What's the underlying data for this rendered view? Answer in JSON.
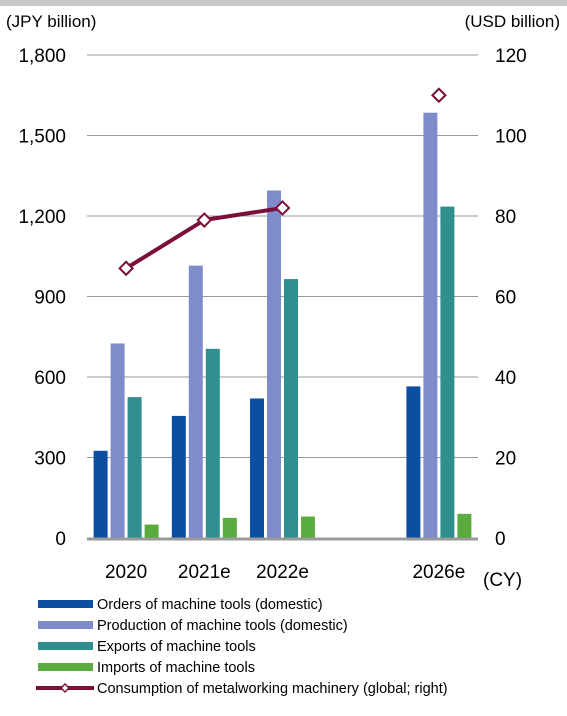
{
  "chart_data": {
    "type": "bar",
    "title": "",
    "categories": [
      "2020",
      "2021e",
      "2022e",
      "2026e"
    ],
    "xlabel": "(CY)",
    "ylabel_left": "(JPY billion)",
    "ylabel_right": "(USD billion)",
    "ylim_left": [
      0,
      1800
    ],
    "ylim_right": [
      0,
      120
    ],
    "yticks_left": [
      "0",
      "300",
      "600",
      "900",
      "1,200",
      "1,500",
      "1,800"
    ],
    "yticks_right": [
      "0",
      "20",
      "40",
      "60",
      "80",
      "100",
      "120"
    ],
    "grid": true,
    "legend_position": "bottom",
    "series": [
      {
        "name": "Orders of machine tools (domestic)",
        "axis": "left",
        "kind": "bar",
        "color": "#0b4ea2",
        "values": [
          325,
          455,
          520,
          565
        ]
      },
      {
        "name": "Production of machine tools (domestic)",
        "axis": "left",
        "kind": "bar",
        "color": "#7f8ccc",
        "values": [
          725,
          1015,
          1295,
          1585
        ]
      },
      {
        "name": "Exports of machine tools",
        "axis": "left",
        "kind": "bar",
        "color": "#2f8f8f",
        "values": [
          525,
          705,
          965,
          1235
        ]
      },
      {
        "name": "Imports of machine tools",
        "axis": "left",
        "kind": "bar",
        "color": "#5aac3e",
        "values": [
          50,
          75,
          80,
          90
        ]
      },
      {
        "name": "Consumption of metalworking machinery (global; right)",
        "axis": "right",
        "kind": "line",
        "color": "#7b0f3a",
        "values": [
          67,
          79,
          82,
          110
        ],
        "connect": [
          true,
          true,
          false
        ]
      }
    ]
  }
}
